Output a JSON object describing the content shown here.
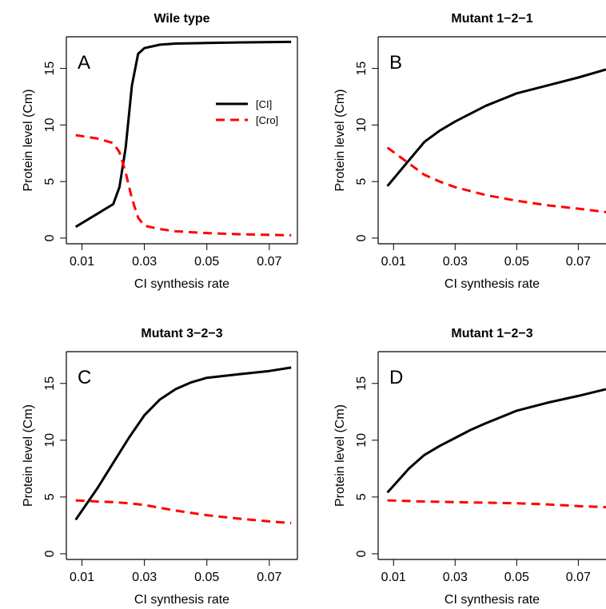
{
  "chart_data": [
    {
      "type": "line",
      "panel_letter": "A",
      "title": "Wile type",
      "xlabel": "CI synthesis rate",
      "ylabel": "Protein level (Cm)",
      "xlim": [
        0.005,
        0.079
      ],
      "ylim": [
        -0.5,
        17.8
      ],
      "xticks": [
        0.01,
        0.03,
        0.05,
        0.07
      ],
      "xtick_labels": [
        "0.01",
        "0.03",
        "0.05",
        "0.07"
      ],
      "yticks": [
        0,
        5,
        10,
        15
      ],
      "ytick_labels": [
        "0",
        "5",
        "10",
        "15"
      ],
      "legend": {
        "position": "top-right",
        "entries": [
          "[CI]",
          "[Cro]"
        ]
      },
      "series": [
        {
          "name": "[CI]",
          "color": "#000000",
          "dash": "solid",
          "x": [
            0.008,
            0.02,
            0.022,
            0.024,
            0.026,
            0.028,
            0.03,
            0.035,
            0.04,
            0.05,
            0.06,
            0.077
          ],
          "y": [
            1.0,
            3.0,
            4.5,
            8.0,
            13.5,
            16.3,
            16.8,
            17.1,
            17.2,
            17.25,
            17.3,
            17.35
          ]
        },
        {
          "name": "[Cro]",
          "color": "#ff0000",
          "dash": "dashed",
          "x": [
            0.008,
            0.015,
            0.02,
            0.022,
            0.024,
            0.026,
            0.028,
            0.03,
            0.035,
            0.04,
            0.05,
            0.06,
            0.077
          ],
          "y": [
            9.1,
            8.8,
            8.4,
            7.6,
            5.8,
            3.5,
            1.8,
            1.1,
            0.8,
            0.6,
            0.45,
            0.35,
            0.25
          ]
        }
      ]
    },
    {
      "type": "line",
      "panel_letter": "B",
      "title": "Mutant 1−2−1",
      "xlabel": "CI synthesis rate",
      "ylabel": "Protein level (Cm)",
      "xlim": [
        0.005,
        0.079
      ],
      "ylim": [
        -0.5,
        17.8
      ],
      "xticks": [
        0.01,
        0.03,
        0.05,
        0.07
      ],
      "xtick_labels": [
        "0.01",
        "0.03",
        "0.05",
        "0.07"
      ],
      "yticks": [
        0,
        5,
        10,
        15
      ],
      "ytick_labels": [
        "0",
        "5",
        "10",
        "15"
      ],
      "series": [
        {
          "color": "#000000",
          "dash": "solid",
          "x": [
            0.008,
            0.02,
            0.025,
            0.03,
            0.035,
            0.04,
            0.05,
            0.06,
            0.07,
            0.079
          ],
          "y": [
            4.6,
            8.5,
            9.5,
            10.3,
            11.0,
            11.7,
            12.8,
            13.5,
            14.2,
            14.9
          ]
        },
        {
          "color": "#ff0000",
          "dash": "dashed",
          "x": [
            0.008,
            0.015,
            0.02,
            0.025,
            0.03,
            0.04,
            0.05,
            0.06,
            0.07,
            0.079
          ],
          "y": [
            8.0,
            6.6,
            5.6,
            5.0,
            4.5,
            3.8,
            3.3,
            2.9,
            2.6,
            2.3
          ]
        }
      ]
    },
    {
      "type": "line",
      "panel_letter": "C",
      "title": "Mutant 3−2−3",
      "xlabel": "CI synthesis rate",
      "ylabel": "Protein level (Cm)",
      "xlim": [
        0.005,
        0.079
      ],
      "ylim": [
        -0.5,
        17.8
      ],
      "xticks": [
        0.01,
        0.03,
        0.05,
        0.07
      ],
      "xtick_labels": [
        "0.01",
        "0.03",
        "0.05",
        "0.07"
      ],
      "yticks": [
        0,
        5,
        10,
        15
      ],
      "ytick_labels": [
        "0",
        "5",
        "10",
        "15"
      ],
      "series": [
        {
          "color": "#000000",
          "dash": "solid",
          "x": [
            0.008,
            0.015,
            0.02,
            0.025,
            0.03,
            0.035,
            0.04,
            0.045,
            0.05,
            0.06,
            0.07,
            0.077
          ],
          "y": [
            3.0,
            5.8,
            8.0,
            10.2,
            12.2,
            13.6,
            14.5,
            15.1,
            15.5,
            15.8,
            16.1,
            16.4
          ]
        },
        {
          "color": "#ff0000",
          "dash": "dashed",
          "x": [
            0.008,
            0.015,
            0.02,
            0.025,
            0.03,
            0.035,
            0.04,
            0.05,
            0.06,
            0.07,
            0.077
          ],
          "y": [
            4.7,
            4.6,
            4.55,
            4.45,
            4.3,
            4.05,
            3.8,
            3.4,
            3.1,
            2.85,
            2.7
          ]
        }
      ]
    },
    {
      "type": "line",
      "panel_letter": "D",
      "title": "Mutant 1−2−3",
      "xlabel": "CI synthesis rate",
      "ylabel": "Protein level (Cm)",
      "xlim": [
        0.005,
        0.079
      ],
      "ylim": [
        -0.5,
        17.8
      ],
      "xticks": [
        0.01,
        0.03,
        0.05,
        0.07
      ],
      "xtick_labels": [
        "0.01",
        "0.03",
        "0.05",
        "0.07"
      ],
      "yticks": [
        0,
        5,
        10,
        15
      ],
      "ytick_labels": [
        "0",
        "5",
        "10",
        "15"
      ],
      "series": [
        {
          "color": "#000000",
          "dash": "solid",
          "x": [
            0.008,
            0.015,
            0.02,
            0.025,
            0.03,
            0.035,
            0.04,
            0.05,
            0.06,
            0.07,
            0.079
          ],
          "y": [
            5.4,
            7.5,
            8.7,
            9.5,
            10.2,
            10.9,
            11.5,
            12.6,
            13.3,
            13.9,
            14.5
          ]
        },
        {
          "color": "#ff0000",
          "dash": "dashed",
          "x": [
            0.008,
            0.02,
            0.03,
            0.04,
            0.05,
            0.06,
            0.07,
            0.079
          ],
          "y": [
            4.7,
            4.6,
            4.55,
            4.5,
            4.45,
            4.35,
            4.2,
            4.1
          ]
        }
      ]
    }
  ]
}
